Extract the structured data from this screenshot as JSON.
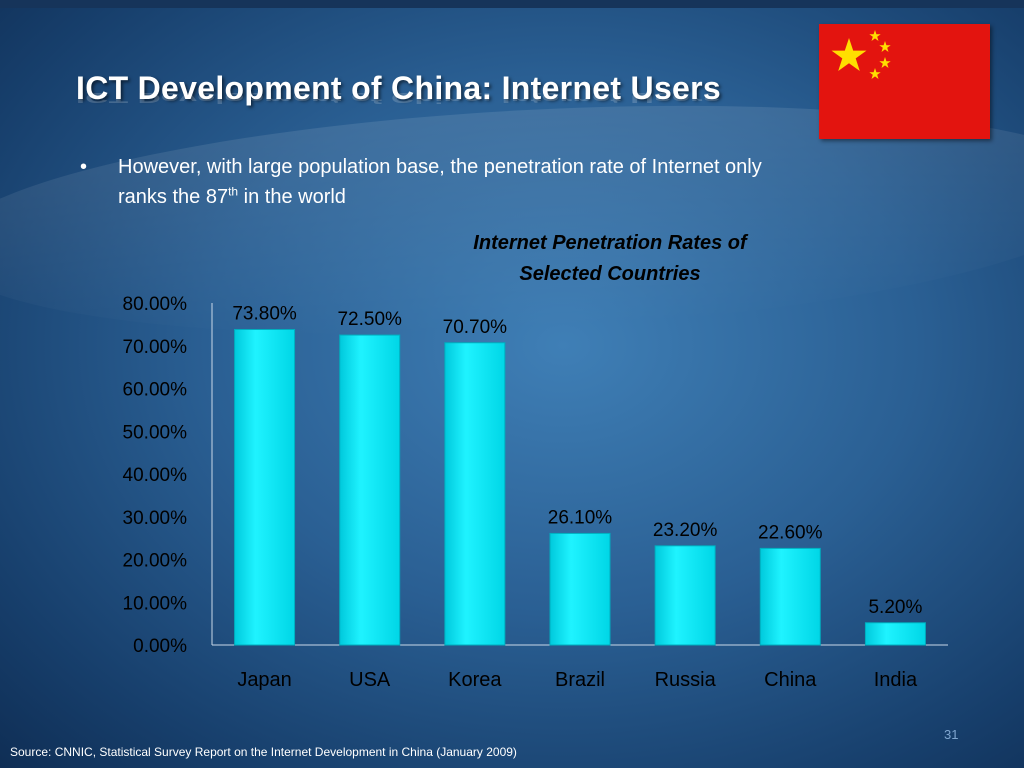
{
  "slide": {
    "title": "ICT Development of China: Internet Users",
    "bullet_marker": "•",
    "bullet_line1": "However, with large population base, the penetration rate of Internet only",
    "bullet_line2_pre": "ranks the 87",
    "bullet_line2_sup": "th",
    "bullet_line2_post": " in the world",
    "footer": "Source: CNNIC, Statistical Survey Report on the Internet Development in China (January 2009)",
    "page_number": "31",
    "flag_color": "#e3140f",
    "star_color": "#ffde00"
  },
  "chart_data": {
    "type": "bar",
    "title_line1": "Internet Penetration Rates of",
    "title_line2": "Selected Countries",
    "categories": [
      "Japan",
      "USA",
      "Korea",
      "Brazil",
      "Russia",
      "China",
      "India"
    ],
    "values": [
      73.8,
      72.5,
      70.7,
      26.1,
      23.2,
      22.6,
      5.2
    ],
    "value_labels": [
      "73.80%",
      "72.50%",
      "70.70%",
      "26.10%",
      "23.20%",
      "22.60%",
      "5.20%"
    ],
    "y_ticks": [
      "0.00%",
      "10.00%",
      "20.00%",
      "30.00%",
      "40.00%",
      "50.00%",
      "60.00%",
      "70.00%",
      "80.00%"
    ],
    "ylim": [
      0,
      80
    ],
    "grid": false,
    "legend": "none",
    "bar_color": "#00e8f0"
  }
}
